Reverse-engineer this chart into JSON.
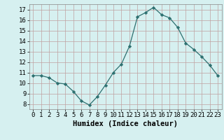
{
  "x": [
    0,
    1,
    2,
    3,
    4,
    5,
    6,
    7,
    8,
    9,
    10,
    11,
    12,
    13,
    14,
    15,
    16,
    17,
    18,
    19,
    20,
    21,
    22,
    23
  ],
  "y": [
    10.7,
    10.7,
    10.5,
    10.0,
    9.9,
    9.2,
    8.3,
    7.9,
    8.7,
    9.8,
    11.0,
    11.8,
    13.5,
    16.3,
    16.7,
    17.2,
    16.5,
    16.2,
    15.3,
    13.8,
    13.2,
    12.5,
    11.7,
    10.7
  ],
  "line_color": "#2d7070",
  "marker": "D",
  "marker_size": 2.2,
  "bg_color": "#d6f0f0",
  "grid_color": "#c0a0a0",
  "xlabel": "Humidex (Indice chaleur)",
  "xlim": [
    -0.5,
    23.5
  ],
  "ylim": [
    7.5,
    17.5
  ],
  "yticks": [
    8,
    9,
    10,
    11,
    12,
    13,
    14,
    15,
    16,
    17
  ],
  "xticks": [
    0,
    1,
    2,
    3,
    4,
    5,
    6,
    7,
    8,
    9,
    10,
    11,
    12,
    13,
    14,
    15,
    16,
    17,
    18,
    19,
    20,
    21,
    22,
    23
  ],
  "label_fontsize": 7.5,
  "tick_fontsize": 6.5
}
